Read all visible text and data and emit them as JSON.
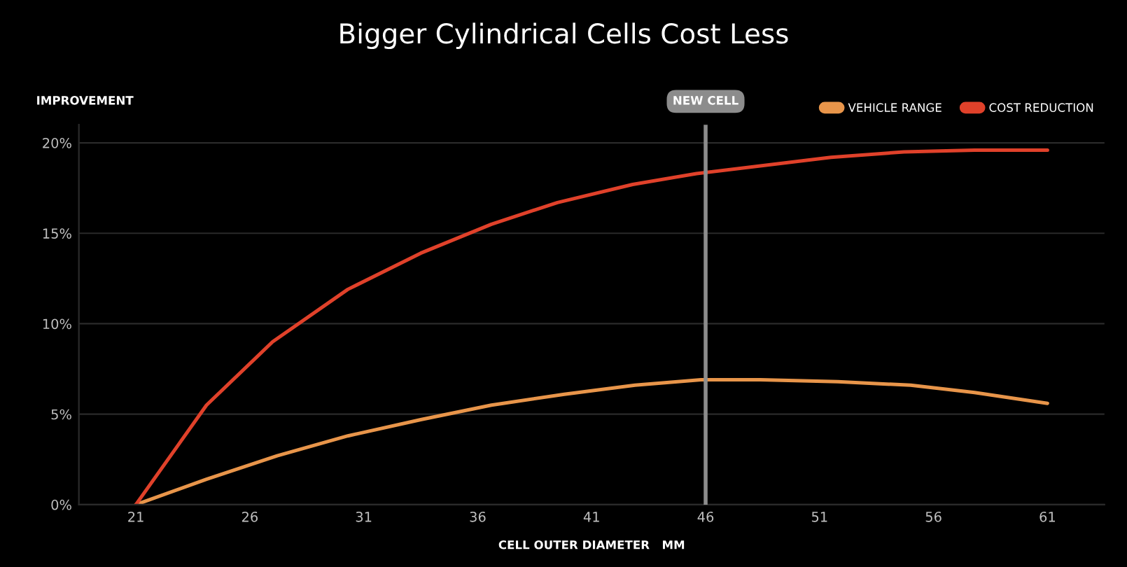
{
  "chart_data": {
    "type": "line",
    "title": "Bigger Cylindrical Cells Cost Less",
    "xlabel": "CELL OUTER DIAMETER   MM",
    "ylabel": "IMPROVEMENT",
    "series": [
      {
        "name": "VEHICLE RANGE",
        "color": "#e8954a",
        "x": [
          21,
          24.1,
          27.2,
          30.3,
          33.5,
          36.6,
          39.8,
          42.9,
          45.8,
          48.4,
          51.8,
          55,
          57.8,
          61
        ],
        "values": [
          0,
          1.4,
          2.7,
          3.8,
          4.7,
          5.5,
          6.1,
          6.6,
          6.9,
          6.9,
          6.8,
          6.6,
          6.2,
          5.6
        ]
      },
      {
        "name": "COST REDUCTION",
        "color": "#e0412a",
        "x": [
          21,
          24.1,
          27,
          30.3,
          33.5,
          36.6,
          39.5,
          42.8,
          45.6,
          51.5,
          54.7,
          57.8,
          61
        ],
        "values": [
          0,
          5.5,
          9.0,
          11.9,
          13.9,
          15.5,
          16.7,
          17.7,
          18.3,
          19.2,
          19.5,
          19.6,
          19.6
        ]
      }
    ],
    "xlim": [
      18.5,
      63.5
    ],
    "xticks": [
      21,
      26,
      31,
      36,
      41,
      46,
      51,
      56,
      61
    ],
    "ylim": [
      0,
      21
    ],
    "yticks": [
      {
        "value": 0,
        "label": "0%"
      },
      {
        "value": 5,
        "label": "5%"
      },
      {
        "value": 10,
        "label": "10%"
      },
      {
        "value": 15,
        "label": "15%"
      },
      {
        "value": 20,
        "label": "20%"
      }
    ],
    "ref_lines": [
      {
        "axis": "x",
        "value": 46,
        "label": "NEW CELL",
        "color": "#8c8c8c"
      }
    ],
    "grid": "y",
    "legend": "top right",
    "marker": "none",
    "line_style": "solid"
  }
}
